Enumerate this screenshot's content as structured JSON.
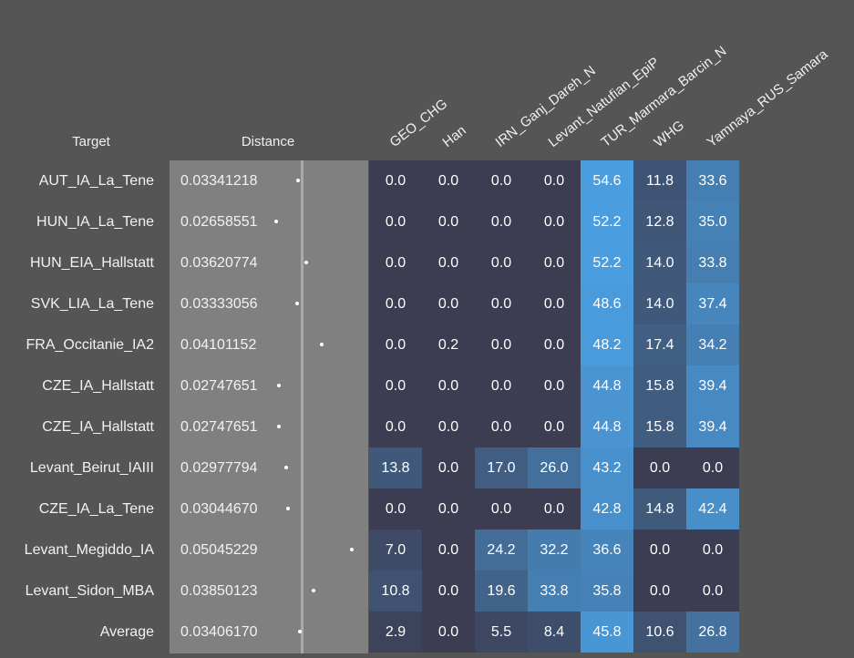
{
  "headers": {
    "target": "Target",
    "distance": "Distance",
    "columns": [
      "GEO_CHG",
      "Han",
      "IRN_Ganj_Dareh_N",
      "Levant_Natufian_EpiP",
      "TUR_Marmara_Barcin_N",
      "WHG",
      "Yamnaya_RUS_Samara"
    ]
  },
  "distance_scale": {
    "min": 0.02,
    "max": 0.055
  },
  "colors": {
    "background": "#555555",
    "distance_panel": "#808080",
    "cell_low": "#3c3d52",
    "cell_high": "#4a9ee0"
  },
  "rows": [
    {
      "label": "AUT_IA_La_Tene",
      "distance": "0.03341218",
      "distance_value": 0.03341218,
      "values": [
        "0.0",
        "0.0",
        "0.0",
        "0.0",
        "54.6",
        "11.8",
        "33.6"
      ]
    },
    {
      "label": "HUN_IA_La_Tene",
      "distance": "0.02658551",
      "distance_value": 0.02658551,
      "values": [
        "0.0",
        "0.0",
        "0.0",
        "0.0",
        "52.2",
        "12.8",
        "35.0"
      ]
    },
    {
      "label": "HUN_EIA_Hallstatt",
      "distance": "0.03620774",
      "distance_value": 0.03620774,
      "values": [
        "0.0",
        "0.0",
        "0.0",
        "0.0",
        "52.2",
        "14.0",
        "33.8"
      ]
    },
    {
      "label": "SVK_LIA_La_Tene",
      "distance": "0.03333056",
      "distance_value": 0.03333056,
      "values": [
        "0.0",
        "0.0",
        "0.0",
        "0.0",
        "48.6",
        "14.0",
        "37.4"
      ]
    },
    {
      "label": "FRA_Occitanie_IA2",
      "distance": "0.04101152",
      "distance_value": 0.04101152,
      "values": [
        "0.0",
        "0.2",
        "0.0",
        "0.0",
        "48.2",
        "17.4",
        "34.2"
      ]
    },
    {
      "label": "CZE_IA_Hallstatt",
      "distance": "0.02747651",
      "distance_value": 0.02747651,
      "values": [
        "0.0",
        "0.0",
        "0.0",
        "0.0",
        "44.8",
        "15.8",
        "39.4"
      ]
    },
    {
      "label": "CZE_IA_Hallstatt",
      "distance": "0.02747651",
      "distance_value": 0.02747651,
      "values": [
        "0.0",
        "0.0",
        "0.0",
        "0.0",
        "44.8",
        "15.8",
        "39.4"
      ]
    },
    {
      "label": "Levant_Beirut_IAIII",
      "distance": "0.02977794",
      "distance_value": 0.02977794,
      "values": [
        "13.8",
        "0.0",
        "17.0",
        "26.0",
        "43.2",
        "0.0",
        "0.0"
      ]
    },
    {
      "label": "CZE_IA_La_Tene",
      "distance": "0.03044670",
      "distance_value": 0.0304467,
      "values": [
        "0.0",
        "0.0",
        "0.0",
        "0.0",
        "42.8",
        "14.8",
        "42.4"
      ]
    },
    {
      "label": "Levant_Megiddo_IA",
      "distance": "0.05045229",
      "distance_value": 0.05045229,
      "values": [
        "7.0",
        "0.0",
        "24.2",
        "32.2",
        "36.6",
        "0.0",
        "0.0"
      ]
    },
    {
      "label": "Levant_Sidon_MBA",
      "distance": "0.03850123",
      "distance_value": 0.03850123,
      "values": [
        "10.8",
        "0.0",
        "19.6",
        "33.8",
        "35.8",
        "0.0",
        "0.0"
      ]
    },
    {
      "label": "Average",
      "distance": "0.03406170",
      "distance_value": 0.0340617,
      "values": [
        "2.9",
        "0.0",
        "5.5",
        "8.4",
        "45.8",
        "10.6",
        "26.8"
      ]
    }
  ]
}
